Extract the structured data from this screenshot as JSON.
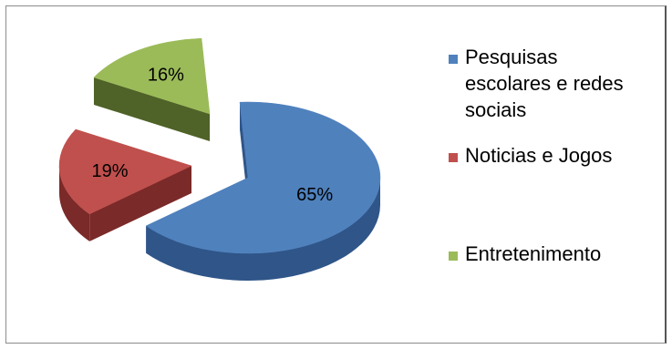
{
  "chart_data": {
    "type": "pie",
    "title": "",
    "slices": [
      {
        "label": "Pesquisas escolares e redes sociais",
        "value": 65,
        "label_text": "65%",
        "color": "#4F81BD",
        "dark": "#2F5589",
        "exploded": false
      },
      {
        "label": "Noticias e Jogos",
        "value": 19,
        "label_text": "19%",
        "color": "#C0504D",
        "dark": "#7A2A28",
        "exploded": true
      },
      {
        "label": "Entretenimento",
        "value": 16,
        "label_text": "16%",
        "color": "#9BBB59",
        "dark": "#4F6228",
        "exploded": true
      }
    ],
    "legend": {
      "position": "right",
      "entries": [
        {
          "lines": [
            "Pesquisas",
            "escolares e redes",
            "sociais"
          ],
          "color": "#4F81BD"
        },
        {
          "lines": [
            "Noticias e Jogos"
          ],
          "color": "#C0504D"
        },
        {
          "lines": [
            "Entretenimento"
          ],
          "color": "#9BBB59"
        }
      ]
    },
    "style": "3d-exploded"
  }
}
